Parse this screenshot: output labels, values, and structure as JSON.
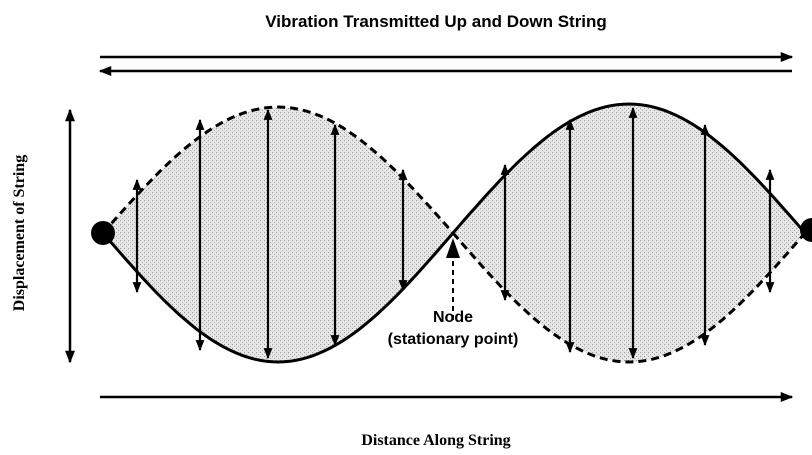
{
  "title": "Vibration Transmitted Up and Down String",
  "y_axis_label": "Displacement of String",
  "x_axis_label": "Distance Along String",
  "node_label": {
    "line1": "Node",
    "line2": "(stationary point)"
  }
}
